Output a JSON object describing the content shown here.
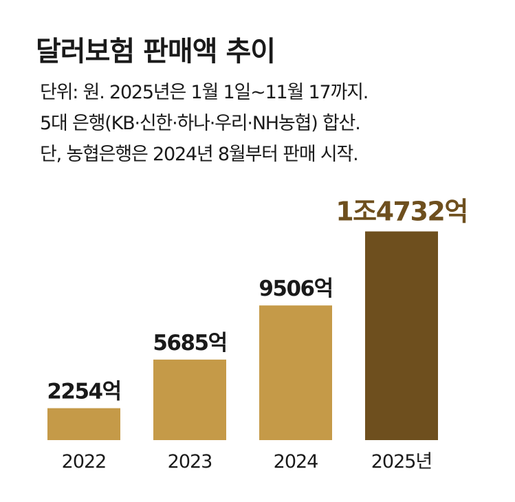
{
  "title": "달러보험 판매액 추이",
  "notes": [
    "단위: 원.  2025년은 1월 1일~11월 17까지.",
    "5대 은행(KB·신한·하나·우리·NH농협) 합산.",
    "단, 농협은행은 2024년 8월부터 판매 시작."
  ],
  "colors": {
    "bar": "#C59A48",
    "highlight_bar": "#6E4F1E",
    "highlight_label": "#6E4F1E",
    "text": "#1a1a1a"
  },
  "chart_data": {
    "type": "bar",
    "title": "달러보험 판매액 추이",
    "unit": "억원",
    "categories": [
      "2022",
      "2023",
      "2024",
      "2025년"
    ],
    "values": [
      2254,
      5685,
      9506,
      14732
    ],
    "data_labels": [
      "2254억",
      "5685억",
      "9506억",
      "1조4732억"
    ],
    "highlight_index": 3,
    "ylim": [
      0,
      15000
    ],
    "grid": false,
    "legend": "none"
  }
}
